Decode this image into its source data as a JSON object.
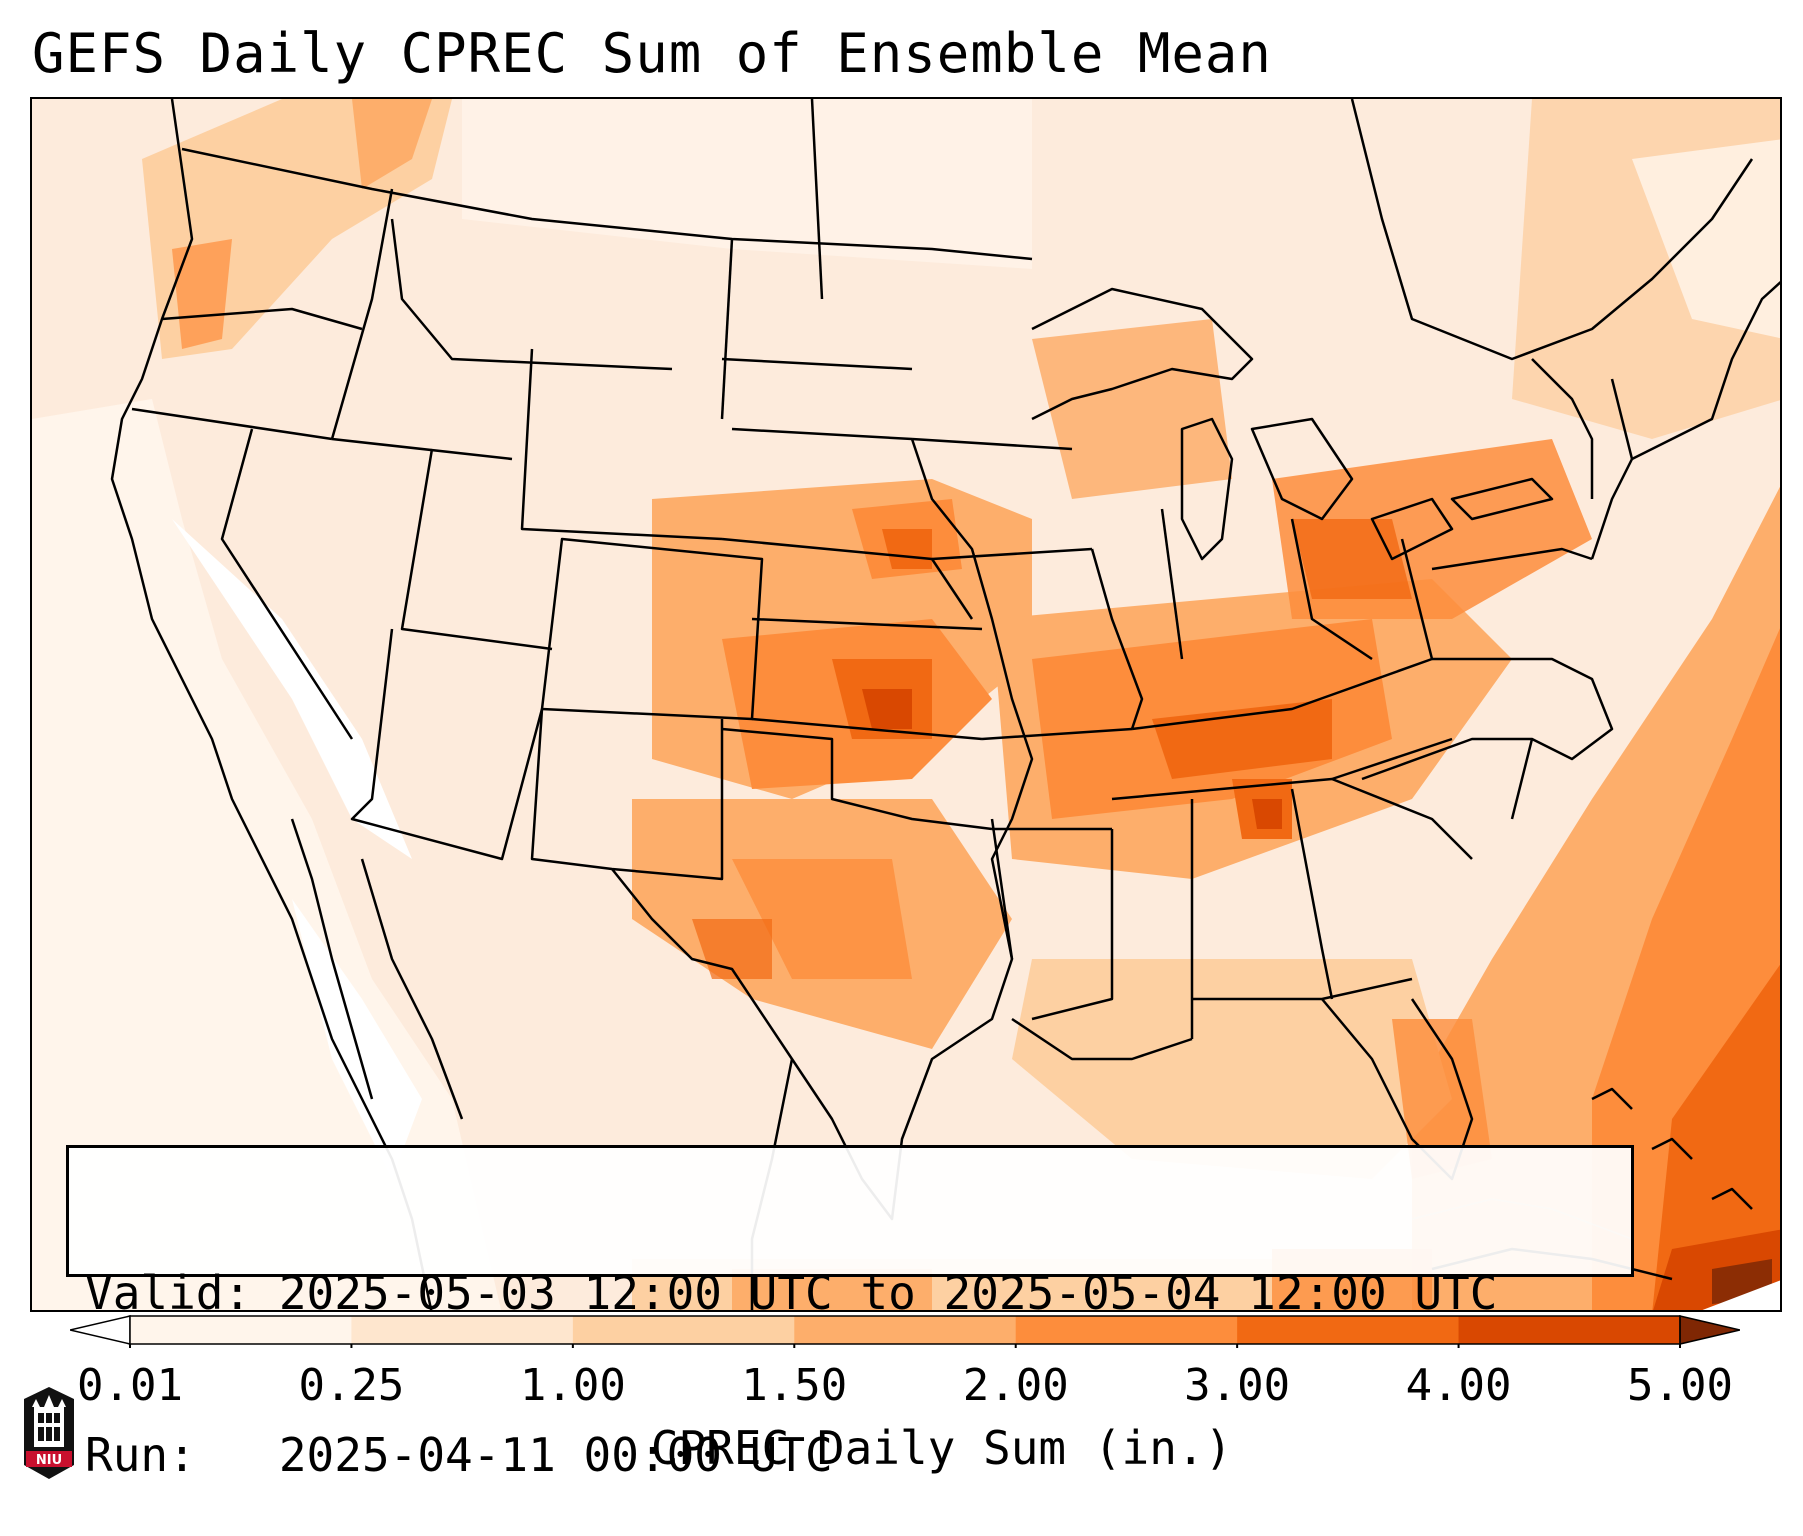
{
  "title": "GEFS Daily CPREC Sum of Ensemble Mean",
  "info": {
    "valid_line": "Valid: 2025-05-03 12:00 UTC to 2025-05-04 12:00 UTC",
    "run_line": "Run:   2025-04-11 00:00 UTC"
  },
  "colorbar": {
    "label": "CPREC Daily Sum (in.)",
    "ticks": [
      "0.01",
      "0.25",
      "1.00",
      "1.50",
      "2.00",
      "3.00",
      "4.00",
      "5.00"
    ],
    "colors": [
      "#fff5eb",
      "#fee6ce",
      "#fdd0a2",
      "#fdae6b",
      "#fd8d3c",
      "#f16913",
      "#d94801",
      "#8c2d04"
    ],
    "under_color": "#ffffff",
    "over_color": "#7f2704"
  },
  "logo": {
    "text": "NIU",
    "name": "niu-logo"
  }
}
